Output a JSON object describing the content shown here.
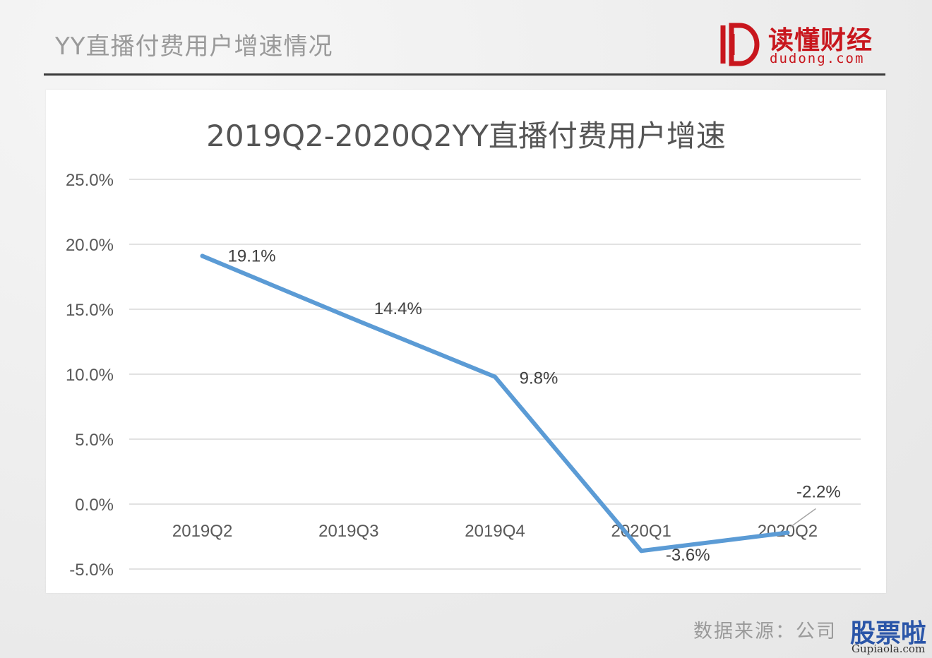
{
  "page": {
    "title": "YY直播付费用户增速情况",
    "source": "数据来源：公司"
  },
  "brand": {
    "name": "读懂财经",
    "url": "dudong.com",
    "color": "#c8161d"
  },
  "watermark": {
    "text": "股票啦",
    "url": "Gupiaola.com",
    "color": "#2a55a8"
  },
  "chart_data": {
    "type": "line",
    "title": "2019Q2-2020Q2YY直播付费用户增速",
    "categories": [
      "2019Q2",
      "2019Q3",
      "2019Q4",
      "2020Q1",
      "2020Q2"
    ],
    "values": [
      19.1,
      14.4,
      9.8,
      -3.6,
      -2.2
    ],
    "data_labels": [
      "19.1%",
      "14.4%",
      "9.8%",
      "-3.6%",
      "-2.2%"
    ],
    "ylim": [
      -5,
      25
    ],
    "yticks": [
      25,
      20,
      15,
      10,
      5,
      0,
      -5
    ],
    "ytick_labels": [
      "25.0%",
      "20.0%",
      "15.0%",
      "10.0%",
      "5.0%",
      "0.0%",
      "-5.0%"
    ],
    "xlabel": "",
    "ylabel": "",
    "grid": true,
    "line_color": "#5b9bd5"
  }
}
